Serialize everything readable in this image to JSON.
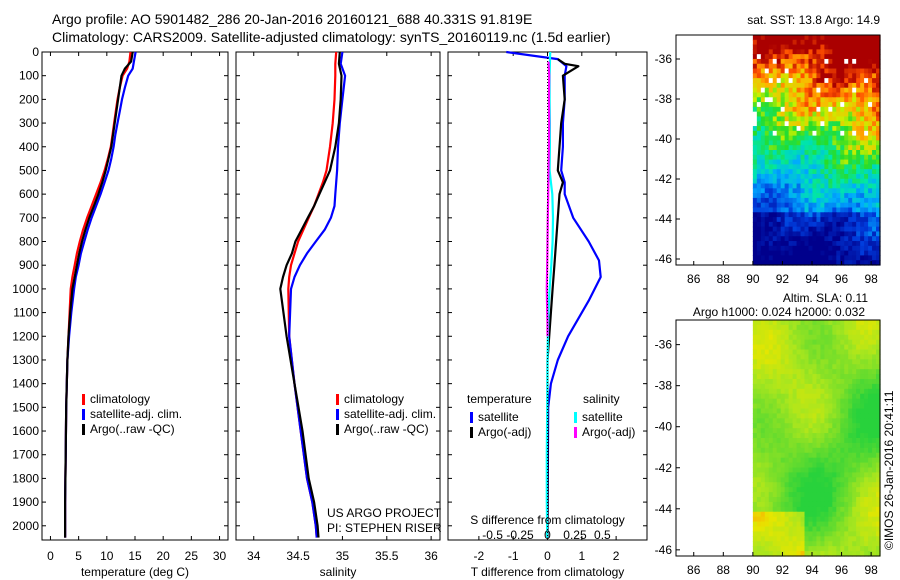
{
  "header": {
    "line1": "Argo profile: AO 5901482_286 20-Jan-2016 20160121_688 40.331S 91.819E",
    "line2": "Climatology: CARS2009. Satellite-adjusted climatology: synTS_20160119.nc (1.5d earlier)"
  },
  "colors": {
    "climatology": "#ff0000",
    "satellite_adj_clim": "#0000ff",
    "argo": "#000000",
    "t_satellite": "#0000ff",
    "t_argo": "#000000",
    "s_satellite": "#00ffff",
    "s_argo": "#ff00ff"
  },
  "credits": {
    "project": "US ARGO PROJECT",
    "pi": "PI: STEPHEN RISER",
    "stamp": "©IMOS 26-Jan-2016 20:41:11"
  },
  "chart_data": [
    {
      "type": "line",
      "name": "temperature-profile",
      "xlabel": "temperature (deg C)",
      "ylabel": "",
      "xlim": [
        -1.5,
        31.5
      ],
      "ylim": [
        2060,
        0
      ],
      "xticks": [
        0,
        5,
        10,
        15,
        20,
        25,
        30
      ],
      "yticks": [
        0,
        100,
        200,
        300,
        400,
        500,
        600,
        700,
        800,
        900,
        1000,
        1100,
        1200,
        1300,
        1400,
        1500,
        1600,
        1700,
        1800,
        1900,
        2000
      ],
      "legend": [
        {
          "label": "climatology",
          "color": "#ff0000"
        },
        {
          "label": "satellite-adj. clim.",
          "color": "#0000ff"
        },
        {
          "label": "Argo(..raw -QC)",
          "color": "#000000"
        }
      ],
      "series": [
        {
          "color": "#ff0000",
          "x": [
            14.2,
            14.0,
            13.6,
            12.8,
            12.3,
            11.9,
            11.6,
            11.3,
            11.0,
            10.7,
            10.2,
            9.6,
            8.9,
            8.1,
            7.3,
            6.5,
            5.8,
            5.2,
            4.7,
            4.3,
            3.9,
            3.6,
            3.4,
            3.2,
            3.0,
            2.8,
            2.7,
            2.6,
            2.6
          ],
          "y": [
            0,
            40,
            70,
            100,
            150,
            200,
            250,
            300,
            350,
            400,
            450,
            500,
            550,
            600,
            650,
            700,
            750,
            800,
            850,
            900,
            950,
            1000,
            1100,
            1200,
            1300,
            1500,
            1700,
            1900,
            2050
          ]
        },
        {
          "color": "#0000ff",
          "x": [
            15.1,
            14.8,
            14.6,
            13.8,
            13.2,
            12.7,
            12.3,
            11.9,
            11.5,
            11.2,
            10.8,
            10.3,
            9.6,
            8.9,
            8.1,
            7.3,
            6.6,
            6.0,
            5.4,
            5.0,
            4.5,
            4.2,
            3.7,
            3.3,
            3.0,
            2.8,
            2.7,
            2.6,
            2.6
          ],
          "y": [
            0,
            40,
            70,
            100,
            150,
            200,
            250,
            300,
            350,
            400,
            450,
            500,
            550,
            600,
            650,
            700,
            750,
            800,
            850,
            900,
            950,
            1000,
            1100,
            1200,
            1300,
            1500,
            1700,
            1900,
            2050
          ]
        },
        {
          "color": "#000000",
          "x": [
            14.6,
            14.3,
            13.2,
            12.6,
            12.3,
            12.0,
            11.7,
            11.4,
            11.1,
            10.8,
            10.3,
            9.8,
            9.2,
            8.5,
            7.7,
            6.9,
            6.2,
            5.6,
            5.1,
            4.7,
            4.3,
            3.9,
            3.5,
            3.2,
            3.0,
            2.8,
            2.7,
            2.6,
            2.6
          ],
          "y": [
            0,
            40,
            70,
            100,
            150,
            200,
            250,
            300,
            350,
            400,
            450,
            500,
            550,
            600,
            650,
            700,
            750,
            800,
            850,
            900,
            950,
            1000,
            1100,
            1200,
            1300,
            1500,
            1700,
            1900,
            2050
          ]
        }
      ]
    },
    {
      "type": "line",
      "name": "salinity-profile",
      "xlabel": "salinity",
      "ylabel": "",
      "xlim": [
        33.8,
        36.1
      ],
      "ylim": [
        2060,
        0
      ],
      "xticks": [
        34,
        34.5,
        35,
        35.5,
        36
      ],
      "legend": [
        {
          "label": "climatology",
          "color": "#ff0000"
        },
        {
          "label": "satellite-adj. clim.",
          "color": "#0000ff"
        },
        {
          "label": "Argo(..raw -QC)",
          "color": "#000000"
        }
      ],
      "series": [
        {
          "color": "#ff0000",
          "x": [
            34.93,
            34.92,
            34.92,
            34.91,
            34.89,
            34.86,
            34.82,
            34.78,
            34.73,
            34.68,
            34.62,
            34.56,
            34.5,
            34.46,
            34.42,
            34.4,
            34.39,
            34.4,
            34.46,
            34.53,
            34.6,
            34.66,
            34.7,
            34.71
          ],
          "y": [
            0,
            50,
            100,
            200,
            300,
            400,
            500,
            550,
            600,
            650,
            700,
            750,
            800,
            850,
            900,
            950,
            1000,
            1200,
            1400,
            1600,
            1800,
            1900,
            2000,
            2050
          ]
        },
        {
          "color": "#0000ff",
          "x": [
            35.0,
            34.98,
            35.03,
            35.0,
            34.97,
            34.95,
            34.94,
            34.93,
            34.92,
            34.91,
            34.87,
            34.8,
            34.7,
            34.6,
            34.52,
            34.46,
            34.42,
            34.4,
            34.46,
            34.53,
            34.6,
            34.66,
            34.7,
            34.71
          ],
          "y": [
            0,
            50,
            100,
            200,
            300,
            400,
            500,
            550,
            600,
            650,
            700,
            750,
            800,
            850,
            900,
            950,
            1000,
            1200,
            1400,
            1600,
            1800,
            1900,
            2000,
            2050
          ]
        },
        {
          "color": "#000000",
          "x": [
            34.97,
            34.96,
            34.99,
            34.98,
            34.96,
            34.92,
            34.86,
            34.8,
            34.74,
            34.68,
            34.61,
            34.54,
            34.47,
            34.43,
            34.37,
            34.33,
            34.3,
            34.37,
            34.46,
            34.55,
            34.62,
            34.68,
            34.72,
            34.73
          ],
          "y": [
            0,
            50,
            100,
            200,
            300,
            400,
            500,
            550,
            600,
            650,
            700,
            750,
            800,
            850,
            900,
            950,
            1000,
            1200,
            1400,
            1600,
            1800,
            1900,
            2000,
            2050
          ]
        }
      ],
      "annotations": [
        "US ARGO PROJECT",
        "PI: STEPHEN RISER"
      ]
    },
    {
      "type": "line",
      "name": "difference-profile",
      "xlabel": "T difference from climatology",
      "xlabel_top": "S difference from climatology",
      "xlim": [
        -2.9,
        2.9
      ],
      "ylim": [
        2060,
        0
      ],
      "xticks": [
        -2,
        -1,
        0,
        1,
        2
      ],
      "xticks_s": [
        -0.5,
        -0.25,
        0,
        0.25,
        0.5
      ],
      "xticklabels_s": [
        "-0.5",
        "-0.25",
        "0",
        "0.25",
        "0.5"
      ],
      "legend": [
        {
          "group": "temperature",
          "label": "satellite",
          "color": "#0000ff"
        },
        {
          "group": "temperature",
          "label": "Argo(-adj)",
          "color": "#000000"
        },
        {
          "group": "salinity",
          "label": "satellite",
          "color": "#00ffff"
        },
        {
          "group": "salinity",
          "label": "Argo(-adj)",
          "color": "#ff00ff"
        }
      ],
      "series": [
        {
          "color": "#0000ff",
          "x": [
            -1.2,
            0.3,
            0.55,
            0.5,
            0.5,
            0.45,
            0.45,
            0.4,
            0.5,
            0.5,
            0.75,
            1.2,
            1.5,
            1.55,
            1.2,
            0.6,
            0.3,
            0.1,
            0.02,
            0.0
          ],
          "y": [
            0,
            30,
            60,
            100,
            200,
            300,
            400,
            500,
            550,
            600,
            700,
            800,
            880,
            950,
            1050,
            1200,
            1300,
            1400,
            1500,
            2050
          ]
        },
        {
          "color": "#000000",
          "x": [
            0.3,
            0.5,
            0.9,
            0.45,
            0.5,
            0.4,
            0.35,
            0.3,
            0.45,
            0.35,
            0.3,
            0.25,
            0.2,
            0.15,
            0.1,
            0.05,
            0.0,
            0.0,
            0.0
          ],
          "y": [
            30,
            50,
            60,
            100,
            200,
            300,
            400,
            500,
            550,
            600,
            700,
            800,
            900,
            1000,
            1100,
            1200,
            1300,
            1500,
            2050
          ]
        },
        {
          "color": "#00ffff",
          "x": [
            0.08,
            0.06,
            0.06,
            0.07,
            0.07,
            0.06,
            0.1,
            0.14,
            0.16,
            0.15,
            0.11,
            0.06,
            0.03,
            0.01,
            0.0,
            -0.01,
            -0.02,
            -0.02,
            -0.01
          ],
          "y": [
            0,
            100,
            200,
            300,
            400,
            500,
            550,
            600,
            700,
            800,
            900,
            1000,
            1100,
            1200,
            1300,
            1500,
            1700,
            1900,
            2050
          ]
        },
        {
          "color": "#ff00ff",
          "x": [
            0.03,
            0.05,
            0.04,
            0.05,
            0.04,
            0.03,
            0.02,
            0.01,
            0.0,
            -0.01,
            -0.02,
            -0.01,
            0.0,
            0.0
          ],
          "y": [
            40,
            100,
            200,
            300,
            400,
            500,
            600,
            700,
            800,
            900,
            1000,
            1100,
            1150,
            1200
          ]
        }
      ]
    },
    {
      "type": "heatmap",
      "name": "sst-map",
      "title": "sat. SST: 13.8 Argo: 14.9",
      "xlim": [
        84.8,
        98.6
      ],
      "ylim": [
        -46.3,
        -34.8
      ],
      "xticks": [
        86,
        88,
        90,
        92,
        94,
        96,
        98
      ],
      "yticks": [
        -36,
        -38,
        -40,
        -42,
        -44,
        -46
      ],
      "data_x_start": 90
    },
    {
      "type": "heatmap",
      "name": "sla-map",
      "title": "Altim. SLA: 0.11",
      "subtitle": "Argo h1000: 0.024 h2000: 0.032",
      "xlim": [
        84.8,
        98.6
      ],
      "ylim": [
        -46.3,
        -34.8
      ],
      "xticks": [
        86,
        88,
        90,
        92,
        94,
        96,
        98
      ],
      "yticks": [
        -36,
        -38,
        -40,
        -42,
        -44,
        -46
      ],
      "data_x_start": 90
    }
  ]
}
